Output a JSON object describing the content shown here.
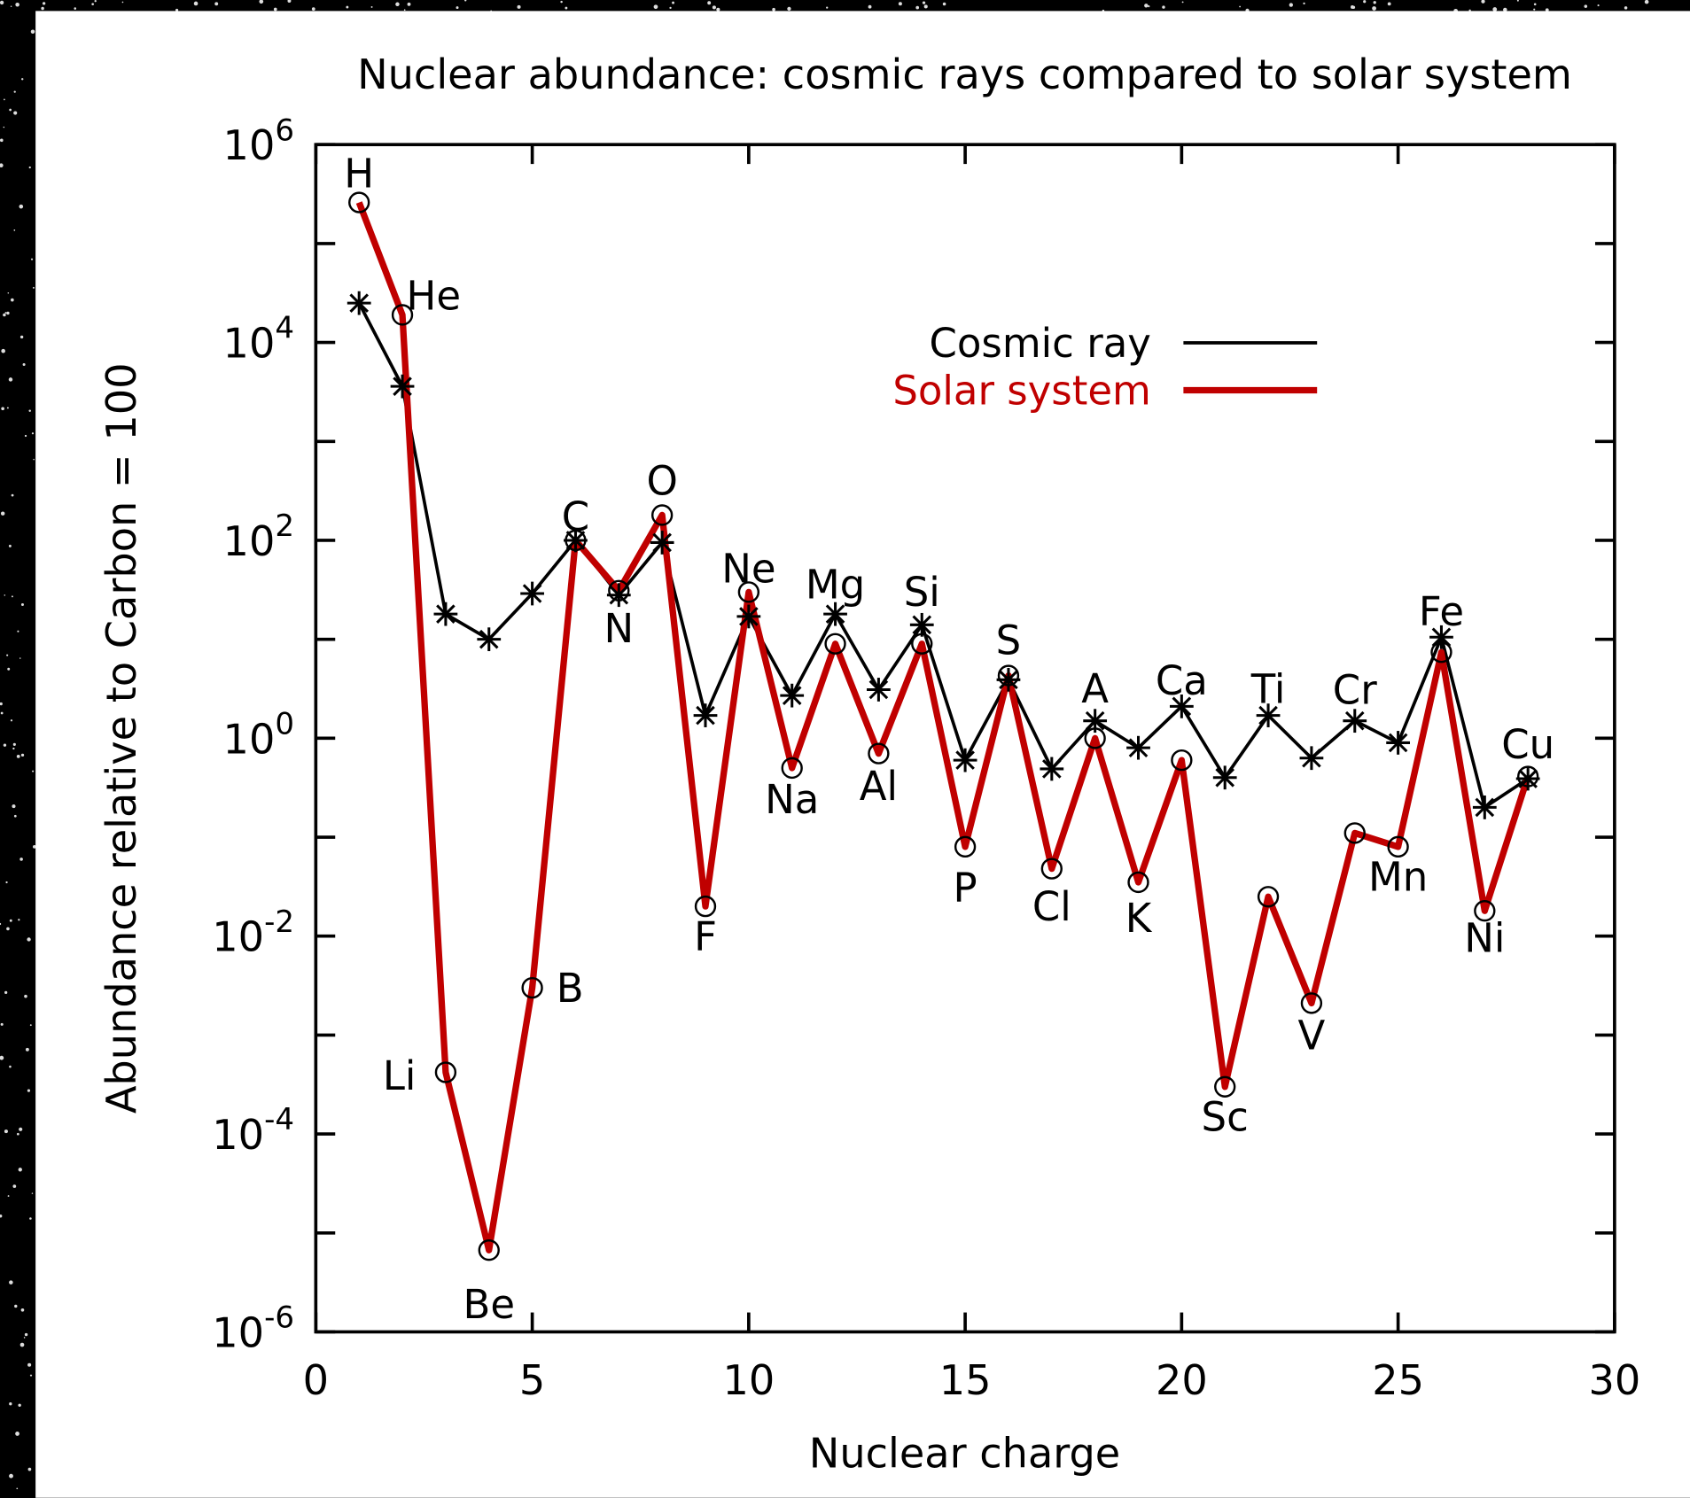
{
  "chart_data": {
    "type": "line",
    "title": "Nuclear abundance: cosmic rays compared to solar system",
    "x_label": "Nuclear charge",
    "y_label": "Abundance relative to Carbon = 100",
    "x": [
      1,
      2,
      3,
      4,
      5,
      6,
      7,
      8,
      9,
      10,
      11,
      12,
      13,
      14,
      15,
      16,
      17,
      18,
      19,
      20,
      21,
      22,
      23,
      24,
      25,
      26,
      27,
      28
    ],
    "labels": [
      "H",
      "He",
      "Li",
      "Be",
      "B",
      "C",
      "N",
      "O",
      "F",
      "Ne",
      "Na",
      "Mg",
      "Al",
      "Si",
      "P",
      "S",
      "Cl",
      "A",
      "K",
      "Ca",
      "Sc",
      "Ti",
      "V",
      "Cr",
      "Mn",
      "Fe",
      "Ni",
      "Cu"
    ],
    "series": [
      {
        "name": "Cosmic ray",
        "color": "#000000",
        "marker": "star",
        "values": [
          25000,
          3600,
          18,
          10,
          29,
          100,
          28,
          95,
          1.7,
          17,
          2.7,
          18,
          3.1,
          14,
          0.6,
          3.9,
          0.49,
          1.5,
          0.8,
          2.1,
          0.4,
          1.7,
          0.63,
          1.5,
          0.9,
          10.5,
          0.2,
          0.39
        ]
      },
      {
        "name": "Solar system",
        "color": "#c00000",
        "marker": "circle",
        "values": [
          260000,
          19000,
          0.00042,
          6.7e-06,
          0.003,
          100,
          31,
          180,
          0.02,
          30,
          0.5,
          9,
          0.7,
          9,
          0.08,
          4.3,
          0.048,
          1,
          0.035,
          0.6,
          0.0003,
          0.025,
          0.0021,
          0.11,
          0.08,
          7.4,
          0.018,
          0.41
        ]
      }
    ],
    "xlim": [
      0,
      30
    ],
    "xticks": [
      0,
      5,
      10,
      15,
      20,
      25,
      30
    ],
    "ylim": [
      1e-06,
      1000000
    ],
    "yticks": [
      {
        "value": 1e-06,
        "label": "10^-6"
      },
      {
        "value": 0.0001,
        "label": "10^-4"
      },
      {
        "value": 0.01,
        "label": "10^-2"
      },
      {
        "value": 1,
        "label": "10^0"
      },
      {
        "value": 100,
        "label": "10^2"
      },
      {
        "value": 10000,
        "label": "10^4"
      },
      {
        "value": 1000000,
        "label": "10^6"
      }
    ],
    "log_y": true,
    "legend": "top-right"
  }
}
